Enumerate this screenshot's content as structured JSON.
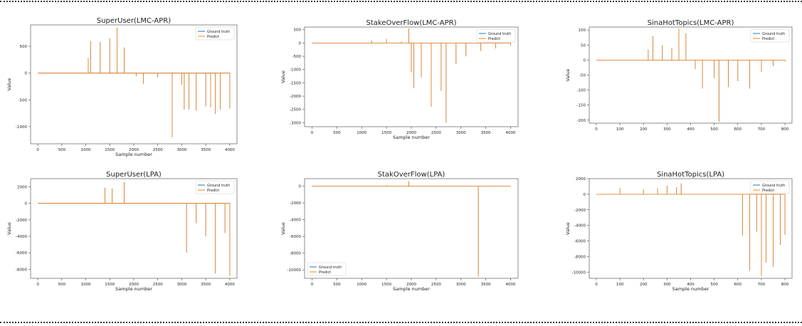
{
  "colors": {
    "ground_truth": "#1f77b4",
    "predict": "#ff7f0e"
  },
  "chart_data": [
    {
      "type": "line",
      "title": "SuperUser(LMC-APR)",
      "xlabel": "Sample number",
      "ylabel": "Value",
      "xlim": [
        -150,
        4150
      ],
      "ylim": [
        -1320,
        900
      ],
      "xticks": [
        0,
        500,
        1000,
        1500,
        2000,
        2500,
        3000,
        3500,
        4000
      ],
      "yticks": [
        500,
        0,
        -500,
        -1000
      ],
      "legend": "top-right",
      "series": [
        {
          "name": "Ground truth",
          "x": [
            0,
            1000,
            1050,
            1100,
            1300,
            1500,
            1650,
            1800,
            2000,
            2050,
            2200,
            2500,
            2800,
            3000,
            3050,
            3150,
            3300,
            3500,
            3600,
            3700,
            3800,
            4000
          ],
          "values": [
            0,
            0,
            280,
            600,
            580,
            650,
            850,
            480,
            0,
            -60,
            -200,
            -80,
            -1200,
            -220,
            -680,
            -680,
            -700,
            -620,
            -640,
            -760,
            -680,
            -660
          ]
        },
        {
          "name": "Predict",
          "x": [
            0,
            1000,
            1050,
            1100,
            1300,
            1500,
            1650,
            1800,
            2000,
            2050,
            2200,
            2500,
            2800,
            3000,
            3050,
            3150,
            3300,
            3500,
            3600,
            3700,
            3800,
            4000
          ],
          "values": [
            0,
            0,
            260,
            600,
            560,
            640,
            840,
            470,
            0,
            -60,
            -200,
            -80,
            -1180,
            -220,
            -670,
            -670,
            -690,
            -610,
            -630,
            -750,
            -670,
            -650
          ]
        }
      ]
    },
    {
      "type": "line",
      "title": "StakeOverFlow(LMC-APR)",
      "xlabel": "Sample number",
      "ylabel": "Value",
      "xlim": [
        -150,
        4150
      ],
      "ylim": [
        -3150,
        600
      ],
      "xticks": [
        0,
        500,
        1000,
        1500,
        2000,
        2500,
        3000,
        3500,
        4000
      ],
      "yticks": [
        500,
        0,
        -500,
        -1000,
        -1500,
        -2000,
        -2500,
        -3000
      ],
      "legend": "top-right",
      "series": [
        {
          "name": "Ground truth",
          "x": [
            0,
            1000,
            1200,
            1500,
            1800,
            1950,
            2000,
            2050,
            2200,
            2400,
            2600,
            2700,
            2900,
            3100,
            3400,
            3700,
            4000
          ],
          "values": [
            0,
            0,
            100,
            150,
            60,
            550,
            -1100,
            -1700,
            -1300,
            -2400,
            -1800,
            -3000,
            -800,
            -500,
            -300,
            -200,
            -100
          ]
        },
        {
          "name": "Predict",
          "x": [
            0,
            1000,
            1200,
            1500,
            1800,
            1950,
            2000,
            2050,
            2200,
            2400,
            2600,
            2700,
            2900,
            3100,
            3400,
            3700,
            4000
          ],
          "values": [
            0,
            0,
            90,
            140,
            60,
            540,
            -1080,
            -1680,
            -1280,
            -2380,
            -1780,
            -2980,
            -790,
            -490,
            -290,
            -190,
            -90
          ]
        }
      ]
    },
    {
      "type": "line",
      "title": "SinaHotTopics(LMC-APR)",
      "xlabel": "",
      "ylabel": "Value",
      "xlim": [
        -30,
        830
      ],
      "ylim": [
        -210,
        110
      ],
      "xticks": [
        0,
        100,
        200,
        300,
        400,
        500,
        600,
        700,
        800
      ],
      "yticks": [
        100,
        50,
        0,
        -50,
        -100,
        -150,
        -200
      ],
      "legend": "top-right",
      "series": [
        {
          "name": "Ground truth",
          "x": [
            0,
            200,
            220,
            240,
            280,
            320,
            350,
            380,
            400,
            420,
            450,
            500,
            520,
            560,
            600,
            650,
            700,
            750,
            800
          ],
          "values": [
            0,
            0,
            35,
            80,
            50,
            40,
            105,
            90,
            0,
            -30,
            -95,
            -60,
            -205,
            -90,
            -70,
            -95,
            -40,
            -20,
            -5
          ]
        },
        {
          "name": "Predict",
          "x": [
            0,
            200,
            220,
            240,
            280,
            320,
            350,
            380,
            400,
            420,
            450,
            500,
            520,
            560,
            600,
            650,
            700,
            750,
            800
          ],
          "values": [
            0,
            0,
            33,
            78,
            49,
            39,
            103,
            88,
            0,
            -29,
            -94,
            -59,
            -203,
            -89,
            -69,
            -94,
            -39,
            -19,
            -4
          ]
        }
      ]
    },
    {
      "type": "line",
      "title": "SuperUser(LPA)",
      "xlabel": "Sample number",
      "ylabel": "Value",
      "xlim": [
        -150,
        4150
      ],
      "ylim": [
        -9100,
        3000
      ],
      "xticks": [
        0,
        500,
        1000,
        1500,
        2000,
        2500,
        3000,
        3500,
        4000
      ],
      "yticks": [
        2000,
        0,
        -2000,
        -4000,
        -6000,
        -8000
      ],
      "legend": "top-right",
      "series": [
        {
          "name": "Ground truth",
          "x": [
            0,
            1000,
            1400,
            1550,
            1800,
            2000,
            3000,
            3100,
            3300,
            3500,
            3700,
            3900,
            4000
          ],
          "values": [
            0,
            0,
            1900,
            1800,
            2600,
            0,
            0,
            -6000,
            -2400,
            -4000,
            -8500,
            -3600,
            -8800
          ]
        },
        {
          "name": "Predict",
          "x": [
            0,
            1000,
            1400,
            1550,
            1800,
            2000,
            3000,
            3100,
            3300,
            3500,
            3700,
            3900,
            4000
          ],
          "values": [
            0,
            0,
            1850,
            1750,
            2550,
            0,
            0,
            -5950,
            -2380,
            -3980,
            -8450,
            -3580,
            -8780
          ]
        }
      ]
    },
    {
      "type": "line",
      "title": "StakOverFlow(LPA)",
      "xlabel": "Sample number",
      "ylabel": "Value",
      "xlim": [
        -150,
        4150
      ],
      "ylim": [
        -11000,
        900
      ],
      "xticks": [
        0,
        500,
        1000,
        1500,
        2000,
        2500,
        3000,
        3500,
        4000
      ],
      "yticks": [
        0,
        -2000,
        -4000,
        -6000,
        -8000,
        -10000
      ],
      "legend": "bottom-left",
      "series": [
        {
          "name": "Ground truth",
          "x": [
            0,
            1000,
            1500,
            1950,
            2000,
            2500,
            3300,
            3350,
            3400,
            4000
          ],
          "values": [
            0,
            0,
            150,
            600,
            0,
            0,
            0,
            -10800,
            0,
            0
          ]
        },
        {
          "name": "Predict",
          "x": [
            0,
            1000,
            1500,
            1950,
            2000,
            2500,
            3300,
            3350,
            3400,
            4000
          ],
          "values": [
            0,
            0,
            140,
            590,
            0,
            0,
            0,
            -10750,
            0,
            0
          ]
        }
      ]
    },
    {
      "type": "line",
      "title": "SinaHotTopics(LPA)",
      "xlabel": "Sample number",
      "ylabel": "Value",
      "xlim": [
        -30,
        830
      ],
      "ylim": [
        -10800,
        2000
      ],
      "xticks": [
        0,
        100,
        200,
        300,
        400,
        500,
        600,
        700,
        800
      ],
      "yticks": [
        2000,
        0,
        -2000,
        -4000,
        -6000,
        -8000,
        -10000
      ],
      "legend": "top-right",
      "series": [
        {
          "name": "Ground truth",
          "x": [
            0,
            90,
            100,
            200,
            260,
            300,
            340,
            360,
            400,
            600,
            620,
            650,
            680,
            700,
            720,
            750,
            780,
            800
          ],
          "values": [
            0,
            0,
            800,
            600,
            800,
            1100,
            900,
            1400,
            0,
            0,
            -5300,
            -9800,
            -4800,
            -10500,
            -8800,
            -9300,
            -6500,
            -5200
          ]
        },
        {
          "name": "Predict",
          "x": [
            0,
            90,
            100,
            200,
            260,
            300,
            340,
            360,
            400,
            600,
            620,
            650,
            680,
            700,
            720,
            750,
            780,
            800
          ],
          "values": [
            0,
            0,
            780,
            590,
            790,
            1080,
            880,
            1380,
            0,
            0,
            -5250,
            -9750,
            -4750,
            -10450,
            -8750,
            -9250,
            -6450,
            -5150
          ]
        }
      ]
    }
  ]
}
